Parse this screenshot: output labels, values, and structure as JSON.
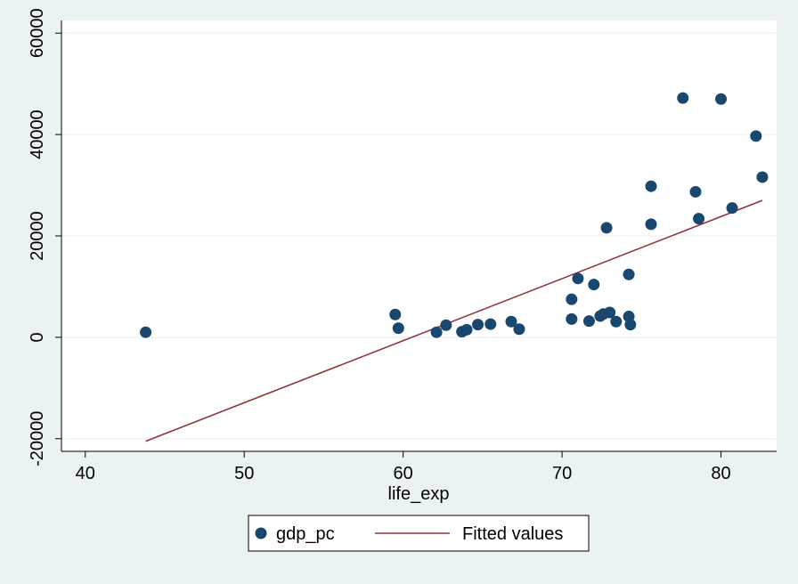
{
  "chart_data": {
    "type": "scatter",
    "title": "",
    "xlabel": "life_exp",
    "ylabel": "",
    "xlim": [
      38.5,
      83.5
    ],
    "ylim": [
      -22500,
      62500
    ],
    "xticks": [
      40,
      50,
      60,
      70,
      80
    ],
    "yticks": [
      -20000,
      0,
      20000,
      40000,
      60000
    ],
    "xtick_labels": [
      "40",
      "50",
      "60",
      "70",
      "80"
    ],
    "ytick_labels": [
      "-20000",
      "0",
      "20000",
      "40000",
      "60000"
    ],
    "grid": "horizontal",
    "legend_placement": "bottom-center",
    "series": [
      {
        "name": "gdp_pc",
        "type": "scatter",
        "color": "#1a476f",
        "points": [
          {
            "x": 43.8,
            "y": 1000
          },
          {
            "x": 59.5,
            "y": 4500
          },
          {
            "x": 59.7,
            "y": 1800
          },
          {
            "x": 62.1,
            "y": 1000
          },
          {
            "x": 62.7,
            "y": 2400
          },
          {
            "x": 63.7,
            "y": 1100
          },
          {
            "x": 64.0,
            "y": 1500
          },
          {
            "x": 64.7,
            "y": 2500
          },
          {
            "x": 65.5,
            "y": 2600
          },
          {
            "x": 66.8,
            "y": 3100
          },
          {
            "x": 67.3,
            "y": 1600
          },
          {
            "x": 70.6,
            "y": 7500
          },
          {
            "x": 70.6,
            "y": 3600
          },
          {
            "x": 71.0,
            "y": 11600
          },
          {
            "x": 71.7,
            "y": 3200
          },
          {
            "x": 72.0,
            "y": 10400
          },
          {
            "x": 72.4,
            "y": 4200
          },
          {
            "x": 72.6,
            "y": 4600
          },
          {
            "x": 72.8,
            "y": 21600
          },
          {
            "x": 73.0,
            "y": 4900
          },
          {
            "x": 73.4,
            "y": 3100
          },
          {
            "x": 74.2,
            "y": 4100
          },
          {
            "x": 74.2,
            "y": 12400
          },
          {
            "x": 74.3,
            "y": 2500
          },
          {
            "x": 75.6,
            "y": 29800
          },
          {
            "x": 75.6,
            "y": 22300
          },
          {
            "x": 77.6,
            "y": 47200
          },
          {
            "x": 78.4,
            "y": 28700
          },
          {
            "x": 78.6,
            "y": 23400
          },
          {
            "x": 80.0,
            "y": 47000
          },
          {
            "x": 80.7,
            "y": 25500
          },
          {
            "x": 82.2,
            "y": 39700
          },
          {
            "x": 82.6,
            "y": 31600
          }
        ]
      },
      {
        "name": "Fitted values",
        "type": "line",
        "color": "#90353b",
        "points": [
          {
            "x": 43.8,
            "y": -20500
          },
          {
            "x": 82.6,
            "y": 27000
          }
        ]
      }
    ],
    "legend": {
      "items": [
        {
          "label": "gdp_pc",
          "marker": "circle",
          "color": "#1a476f"
        },
        {
          "label": "Fitted values",
          "marker": "line",
          "color": "#90353b"
        }
      ]
    },
    "colors": {
      "outer_background": "#eaf2f3",
      "plot_background": "#ffffff",
      "gridline": "#eaf2f3",
      "axis": "#000000"
    }
  }
}
